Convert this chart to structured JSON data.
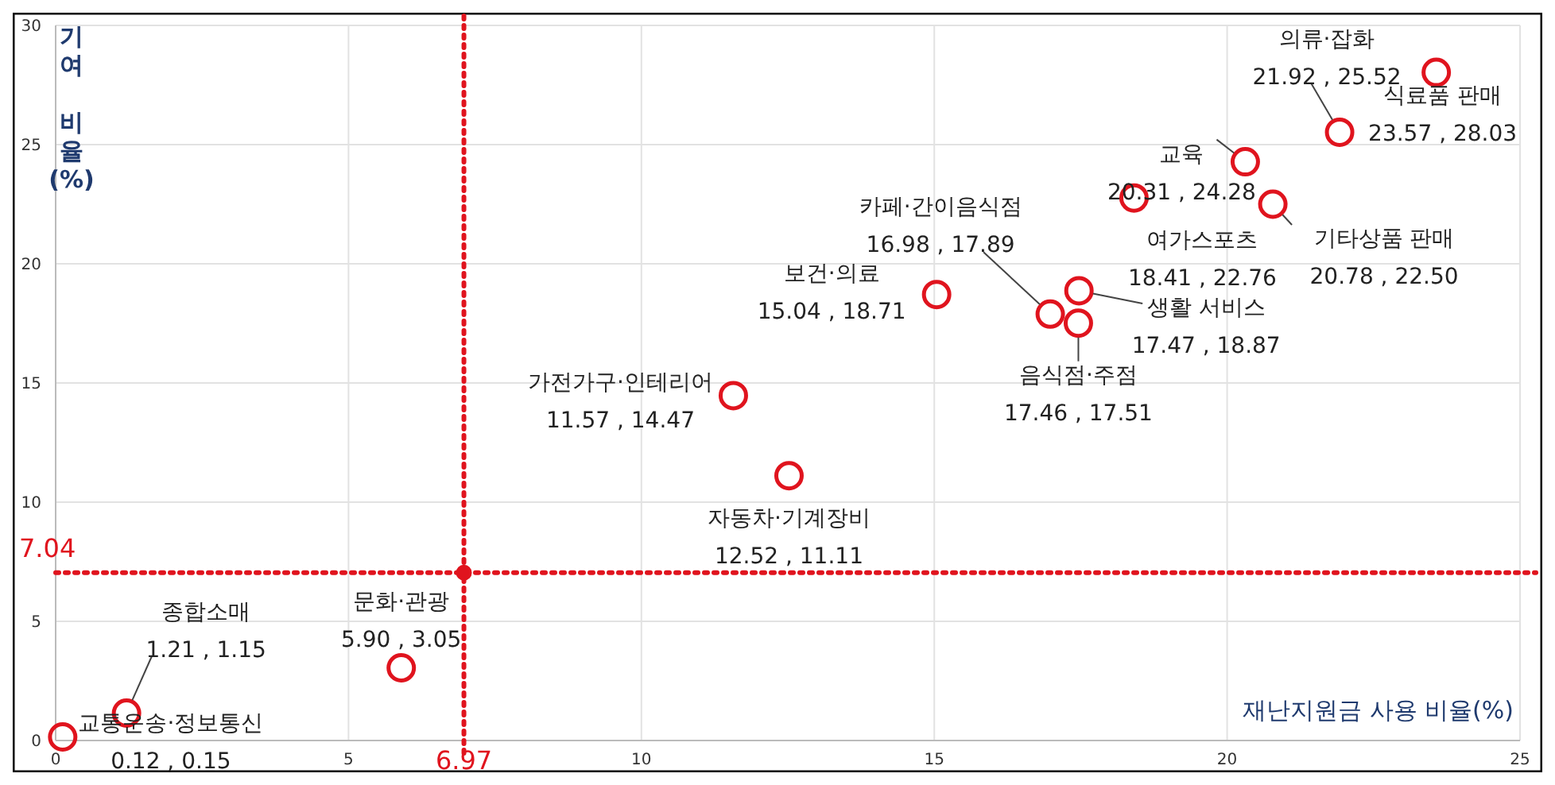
{
  "chart_data": {
    "type": "scatter",
    "xlabel": "재난지원금 사용 비율(%)",
    "ylabel": "기여 비율(%)",
    "xlim": [
      0,
      25
    ],
    "ylim": [
      0,
      30
    ],
    "xticks": [
      0,
      5,
      10,
      15,
      20,
      25
    ],
    "yticks": [
      0,
      5,
      10,
      15,
      20,
      25,
      30
    ],
    "grid": true,
    "marker": "circle",
    "series": [
      {
        "color": "#e0141e",
        "x": [
          0.12,
          1.21,
          5.9,
          12.52,
          11.57,
          15.04,
          16.98,
          17.46,
          17.47,
          18.41,
          20.78,
          20.31,
          21.92,
          23.57
        ],
        "values": [
          0.15,
          1.15,
          3.05,
          11.11,
          14.47,
          18.71,
          17.89,
          17.51,
          18.87,
          22.76,
          22.5,
          24.28,
          25.52,
          28.03
        ],
        "value_labels": [
          "0.12 , 0.15",
          "1.21 , 1.15",
          "5.90 , 3.05",
          "12.52 , 11.11",
          "11.57 , 14.47",
          "15.04 , 18.71",
          "16.98 , 17.89",
          "17.46 , 17.51",
          "17.47 , 18.87",
          "18.41 , 22.76",
          "20.78 , 22.50",
          "20.31 , 24.28",
          "21.92 , 25.52",
          "23.57 , 28.03"
        ]
      },
      {
        "color": "#e0141e",
        "x": [
          6.97
        ],
        "values": [
          7.04
        ]
      }
    ],
    "annotations": [
      {
        "text": "교통운송·정보통신",
        "x": 0.12,
        "y": 0.15
      },
      "종합소매",
      {
        "text": "문화·관광",
        "x": 5.9,
        "y": 3.05
      },
      {
        "text": "자동차·기계장비",
        "x": 12.52,
        "y": 11.11
      },
      {
        "text": "가전가구·인테리어",
        "x": 11.57,
        "y": 14.47
      },
      {
        "text": "보건·의료",
        "x": 15.04,
        "y": 18.71
      },
      "카페·간이음식점",
      {
        "text": "음식점·주점",
        "x": 17.46,
        "y": 17.51
      },
      {
        "text": "생활 서비스",
        "x": 17.47,
        "y": 18.87
      },
      {
        "text": "여가스포츠",
        "x": 18.41,
        "y": 22.76
      },
      {
        "text": "기타상품 판매",
        "x": 20.78,
        "y": 22.5
      },
      {
        "text": "교육",
        "x": 20.31,
        "y": 24.28
      },
      "의류·잡화",
      {
        "text": "식료품 판매",
        "x": 23.57,
        "y": 28.03
      }
    ],
    "ref_lines": [
      {
        "axis": "x",
        "value": 6.97,
        "label": "6.97",
        "color": "#e0141e",
        "line_style": "dotted"
      },
      {
        "axis": "y",
        "value": 7.04,
        "label": "7.04",
        "color": "#e0141e",
        "line_style": "dotted"
      }
    ]
  }
}
